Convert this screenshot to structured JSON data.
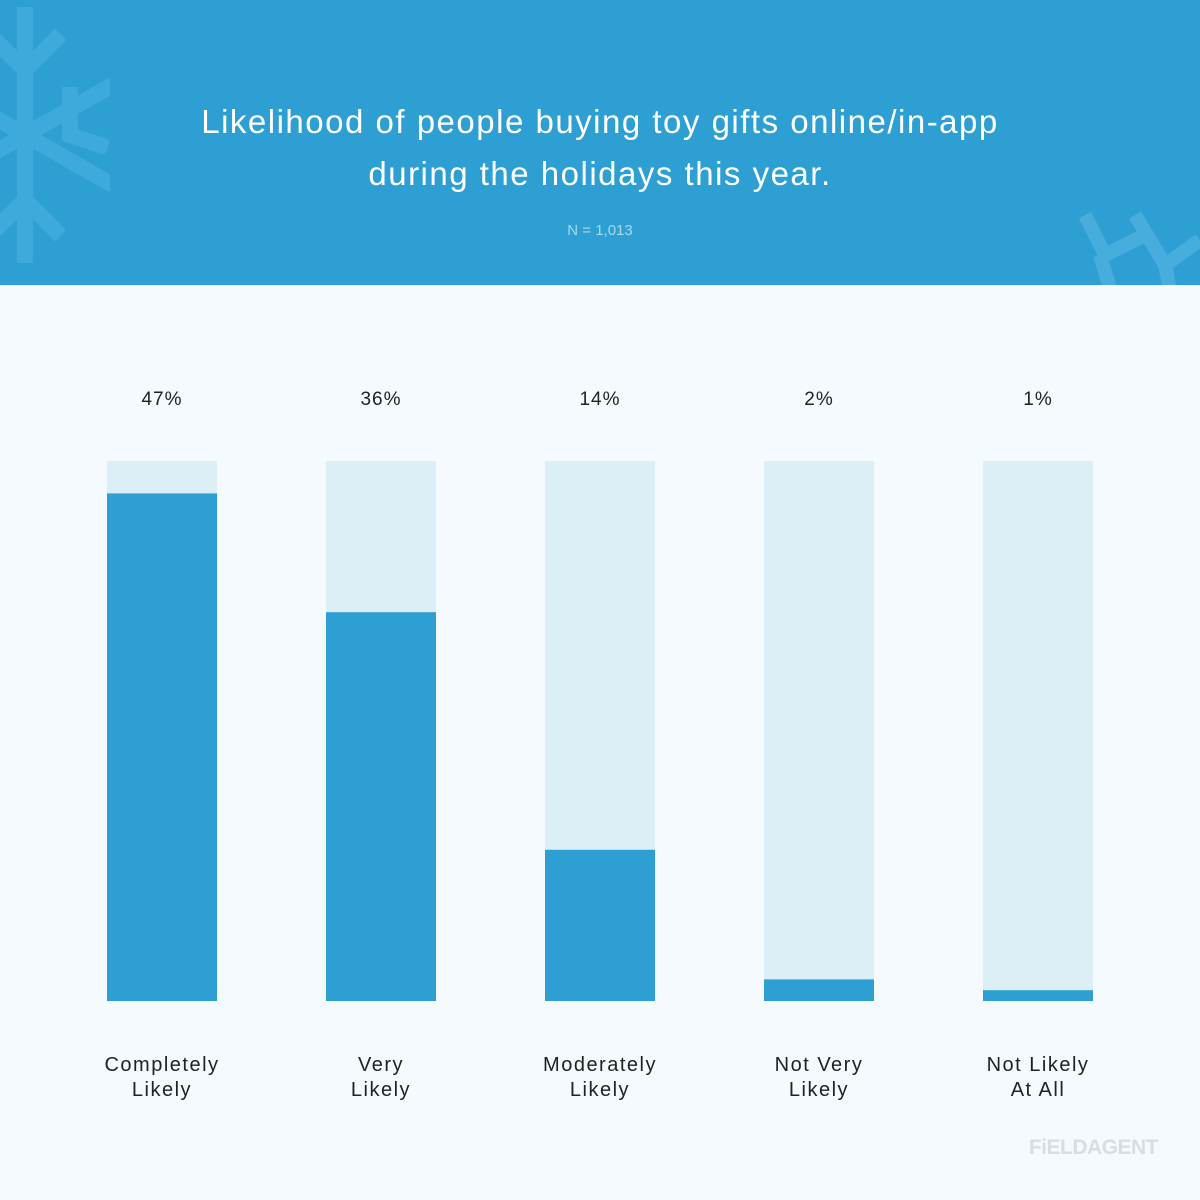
{
  "header": {
    "title_line1": "Likelihood of people buying toy gifts online/in-app",
    "title_line2": "during the holidays this year.",
    "sample_size": "N = 1,013"
  },
  "colors": {
    "header_bg": "#2d9fd3",
    "bar_fill": "#2d9fd3",
    "bar_track": "#ddeff6",
    "page_bg": "#f4fafd"
  },
  "decorations": [
    "snowflake-icon",
    "snowflake-icon"
  ],
  "brand": "FiELDAGENT",
  "chart_data": {
    "type": "bar",
    "title": "Likelihood of people buying toy gifts online/in-app during the holidays this year.",
    "subtitle": "N = 1,013",
    "categories": [
      [
        "Completely",
        "Likely"
      ],
      [
        "Very",
        "Likely"
      ],
      [
        "Moderately",
        "Likely"
      ],
      [
        "Not Very",
        "Likely"
      ],
      [
        "Not Likely",
        "At All"
      ]
    ],
    "values": [
      47,
      36,
      14,
      2,
      1
    ],
    "value_labels": [
      "47%",
      "36%",
      "14%",
      "2%",
      "1%"
    ],
    "ylim": [
      0,
      50
    ],
    "unit": "%",
    "grid": false,
    "legend": "none"
  }
}
